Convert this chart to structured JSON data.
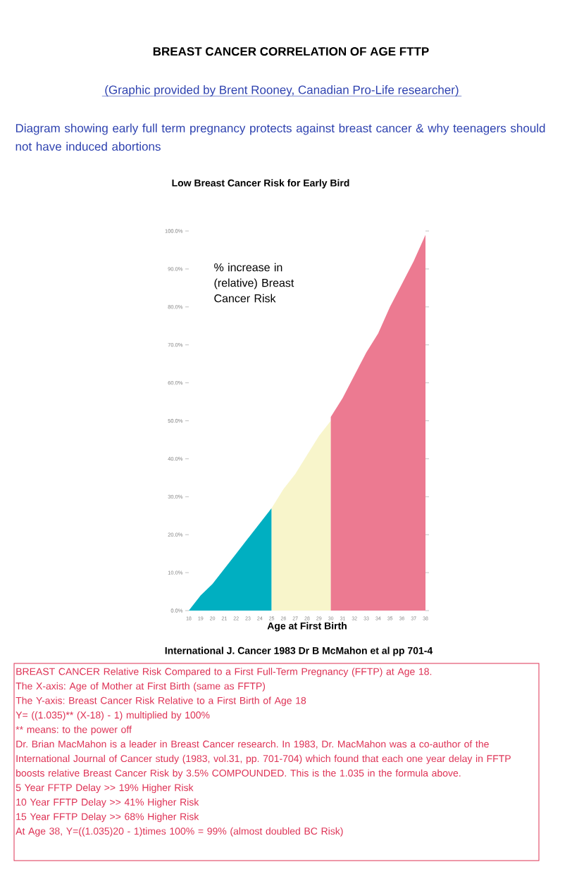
{
  "chart_data": {
    "type": "area",
    "title": "BREAST CANCER CORRELATION OF AGE FTTP",
    "subtitle": "Low Breast Cancer Risk for Early Bird",
    "xlabel": "Age at First Birth",
    "annotations": [
      "(Graphic provided by Brent Rooney, Canadian Pro-Life researcher)",
      "Diagram showing early full term pregnancy protects against breast cancer & why teenagers should not have induced abortions",
      "% increase in (relative) Breast Cancer Risk",
      "International J. Cancer 1983 Dr B McMahon et al pp 701-4",
      "BREAST CANCER Relative Risk Compared to a First Full-Term Pregnancy (FFTP) at Age 18.",
      "The X-axis: Age of Mother at First Birth (same as FFTP)",
      "The Y-axis: Breast Cancer Risk Relative to a First Birth of Age 18",
      "Y= ((1.035)** (X-18) - 1) multiplied by 100%",
      "** means: to the power off",
      "Dr. Brian MacMahon is a leader in Breast Cancer research. In 1983, Dr. MacMahon was a co-author of the International Journal of Cancer study (1983, vol.31, pp. 701-704) which found that each one year delay in FFTP boosts relative Breast Cancer Risk by 3.5% COMPOUNDED. This is the 1.035 in the formula above.",
      "5 Year FFTP Delay >> 19% Higher Risk",
      "10 Year FFTP Delay >> 41% Higher Risk",
      "15 Year FFTP Delay >> 68% Higher Risk",
      "At Age 38, Y=((1.035)20 - 1)times 100% = 99% (almost doubled BC Risk)"
    ],
    "series": [
      {
        "color": "#00afc1",
        "x": [
          18,
          19,
          20,
          21,
          22,
          23,
          24,
          25
        ],
        "values": [
          0,
          4,
          7,
          11,
          15,
          19,
          23,
          27
        ]
      },
      {
        "color": "#f8f5cb",
        "x": [
          25,
          26,
          27,
          28,
          29,
          30
        ],
        "values": [
          27,
          32,
          36,
          41,
          46,
          50
        ]
      },
      {
        "color": "#ec7a91",
        "x": [
          30,
          31,
          32,
          33,
          34,
          35,
          36,
          37,
          38
        ],
        "values": [
          51,
          56,
          62,
          68,
          73,
          80,
          86,
          92,
          99
        ]
      }
    ],
    "xlim": [
      18,
      38
    ],
    "ylim": [
      0,
      100
    ],
    "xticks": [
      18,
      19,
      20,
      21,
      22,
      23,
      24,
      25,
      26,
      27,
      28,
      29,
      30,
      31,
      32,
      33,
      34,
      35,
      36,
      37,
      38
    ],
    "yticks": [
      {
        "value": 0,
        "label": "0.0%"
      },
      {
        "value": 10,
        "label": "10.0%"
      },
      {
        "value": 20,
        "label": "20.0%"
      },
      {
        "value": 30,
        "label": "30.0%"
      },
      {
        "value": 40,
        "label": "40.0%"
      },
      {
        "value": 50,
        "label": "50.0%"
      },
      {
        "value": 60,
        "label": "60.0%"
      },
      {
        "value": 70,
        "label": "70.0%"
      },
      {
        "value": 80,
        "label": "80.0%"
      },
      {
        "value": 90,
        "label": "90.0%"
      },
      {
        "value": 100,
        "label": "100.0%"
      }
    ],
    "grid": false
  }
}
